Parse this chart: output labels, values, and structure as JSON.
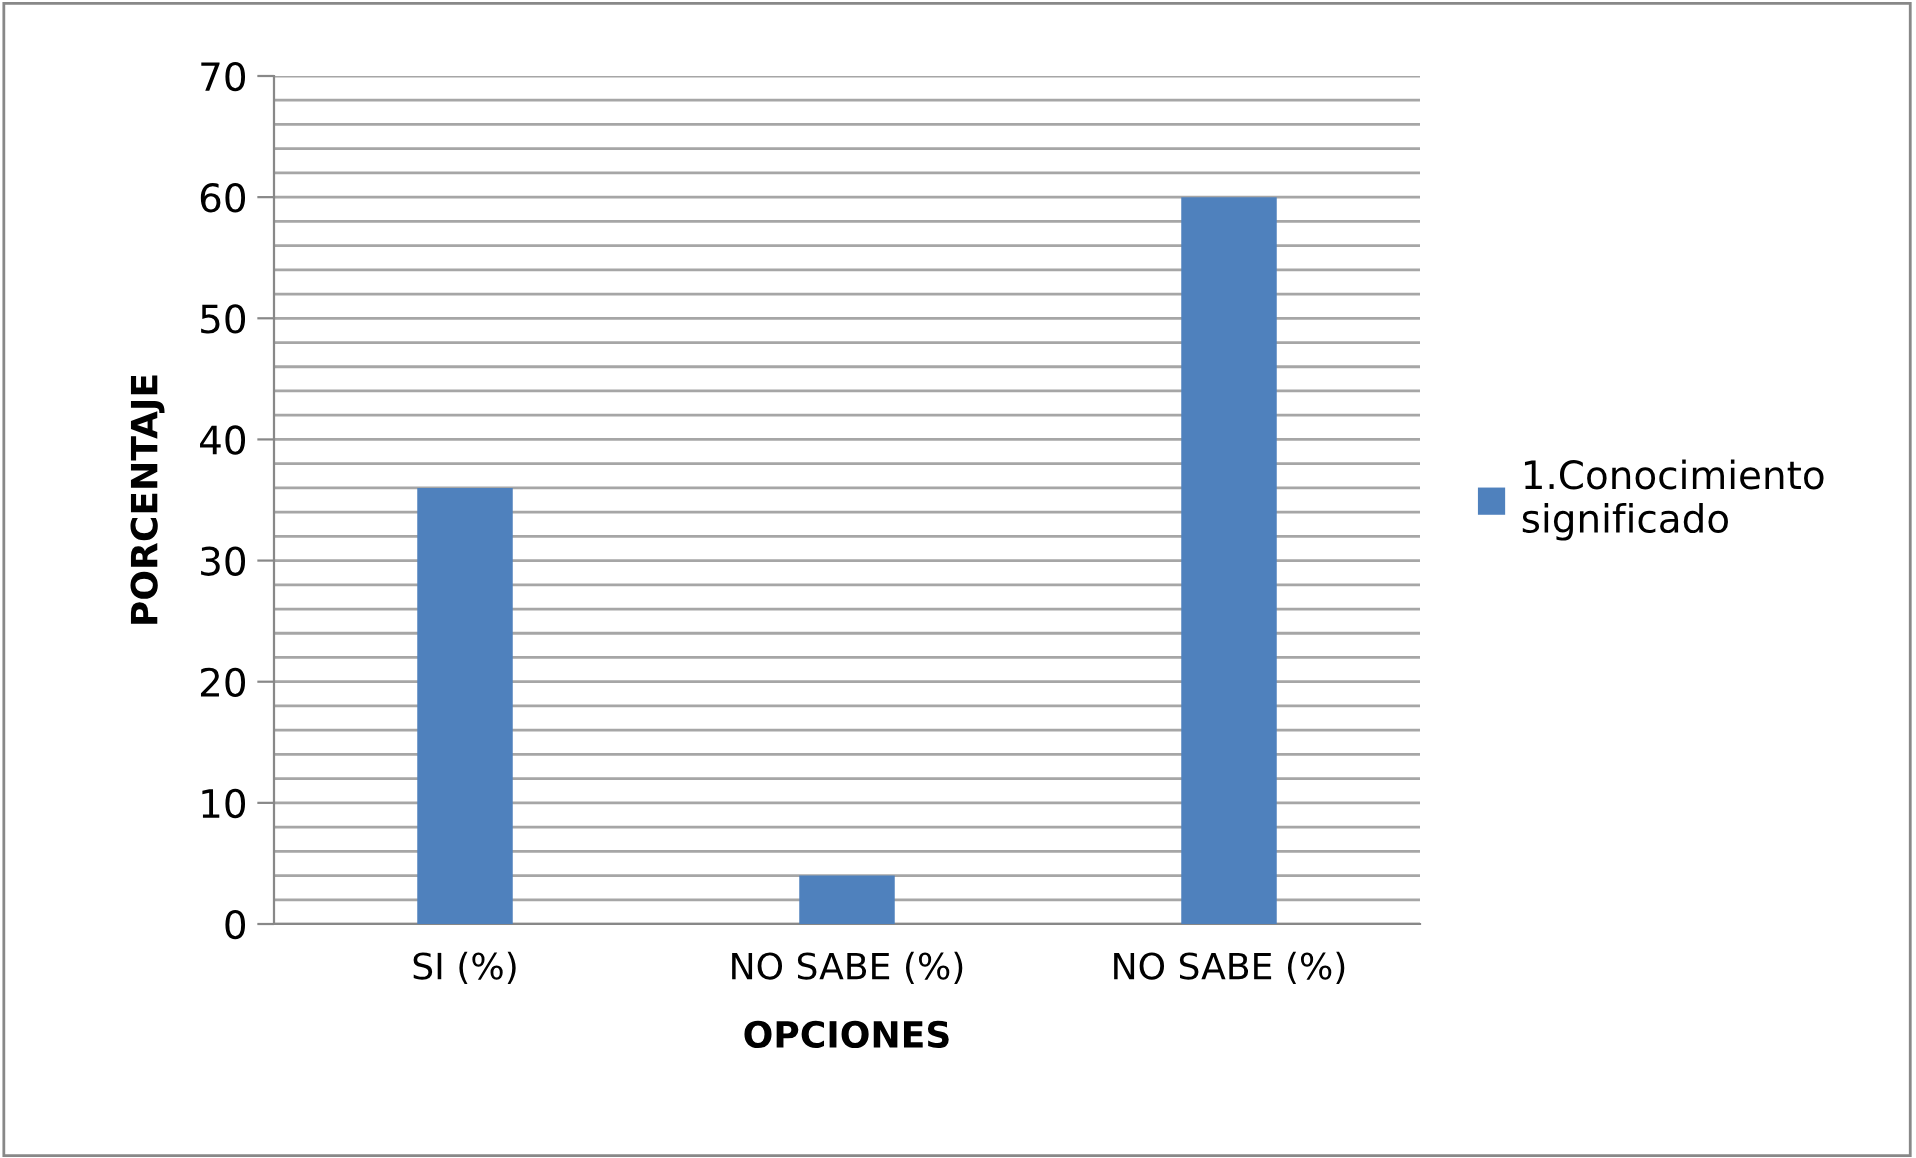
{
  "chart_data": {
    "type": "bar",
    "xlabel": "OPCIONES",
    "ylabel": "PORCENTAJE",
    "categories": [
      "SI (%)",
      "NO SABE (%)",
      "NO SABE (%)"
    ],
    "series": [
      {
        "name": "1.Conocimiento\nsignificado",
        "color": "#4f81bd",
        "values": [
          36,
          4,
          60
        ]
      }
    ],
    "ylim": [
      0,
      70
    ],
    "yticks": [
      0,
      10,
      20,
      30,
      40,
      50,
      60,
      70
    ],
    "grid": "y",
    "legend": "right"
  }
}
